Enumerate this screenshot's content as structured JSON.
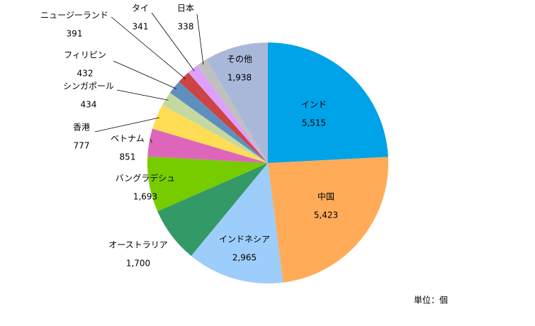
{
  "chart_data": {
    "type": "pie",
    "categories": [
      "インド",
      "中国",
      "インドネシア",
      "オーストラリア",
      "バングラデシュ",
      "ベトナム",
      "香港",
      "シンガポール",
      "フィリピン",
      "ニュージーランド",
      "タイ",
      "日本",
      "その他"
    ],
    "values": [
      5515,
      5423,
      2965,
      1700,
      1693,
      851,
      777,
      434,
      432,
      391,
      341,
      338,
      1938
    ],
    "value_labels": [
      "5,515",
      "5,423",
      "2,965",
      "1,700",
      "1,693",
      "851",
      "777",
      "434",
      "432",
      "391",
      "341",
      "338",
      "1,938"
    ],
    "colors": [
      "#00a2e8",
      "#ffab57",
      "#9dcdfb",
      "#339966",
      "#77cc00",
      "#dd66bb",
      "#ffdd55",
      "#c4d9a0",
      "#5f8fbf",
      "#cc4444",
      "#dda0ff",
      "#c0c0c0",
      "#a9b8d8"
    ],
    "annotation": "単位：個"
  }
}
